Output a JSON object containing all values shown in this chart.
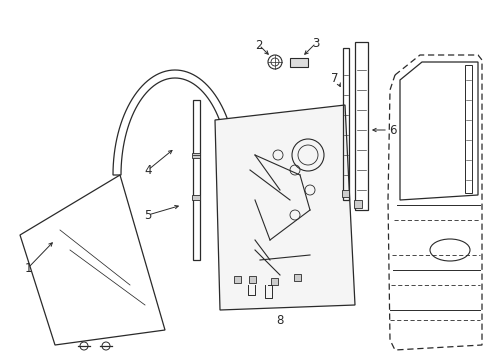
{
  "background_color": "#ffffff",
  "line_color": "#2a2a2a",
  "dashed_color": "#2a2a2a",
  "figsize": [
    4.89,
    3.6
  ],
  "dpi": 100,
  "label_fontsize": 8.5
}
